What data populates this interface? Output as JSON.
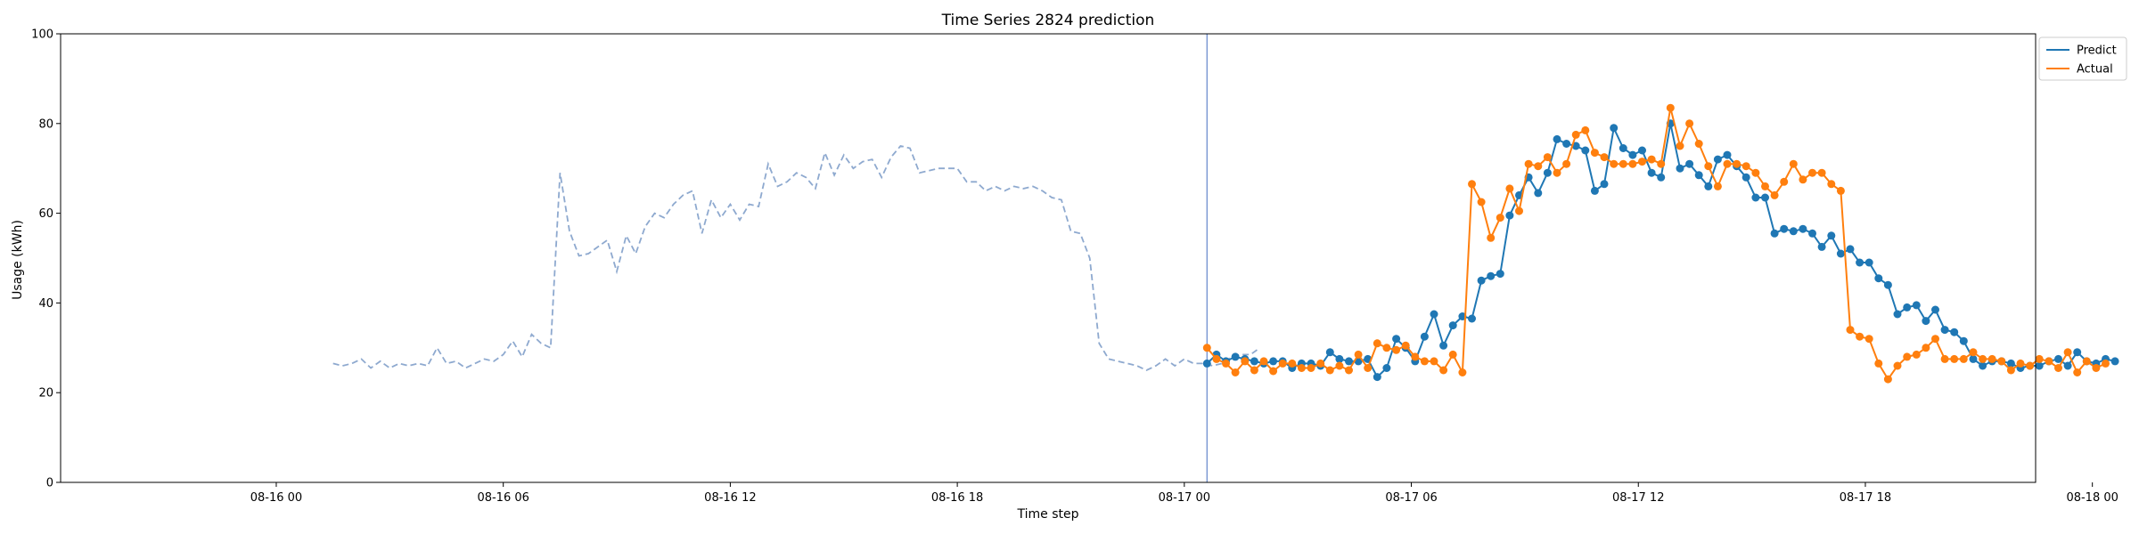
{
  "chart_data": {
    "type": "line",
    "title": "Time Series 2824 prediction",
    "xlabel": "Time step",
    "ylabel": "Usage (kWh)",
    "ylim": [
      0,
      100
    ],
    "yticks": [
      0,
      20,
      40,
      60,
      80,
      100
    ],
    "xlim_hours": [
      -5.7,
      46.5
    ],
    "xticks": [
      {
        "label": "08-16 00",
        "hour": 0
      },
      {
        "label": "08-16 06",
        "hour": 6
      },
      {
        "label": "08-16 12",
        "hour": 12
      },
      {
        "label": "08-16 18",
        "hour": 18
      },
      {
        "label": "08-17 00",
        "hour": 24
      },
      {
        "label": "08-17 06",
        "hour": 30
      },
      {
        "label": "08-17 12",
        "hour": 36
      },
      {
        "label": "08-17 18",
        "hour": 42
      },
      {
        "label": "08-18 00",
        "hour": 48
      }
    ],
    "forecast_start_hour": 24.6,
    "history": {
      "start_hour": 1.5,
      "step_hours": 0.25,
      "color": "#8ea9cf",
      "values": [
        26.5,
        26,
        26.5,
        27.5,
        25.5,
        27,
        25.5,
        26.5,
        26,
        26.5,
        26,
        30,
        26.5,
        27,
        25.5,
        26.5,
        27.5,
        27,
        28.5,
        31.5,
        28,
        33,
        31,
        30,
        69,
        56,
        50.5,
        51,
        52.5,
        54,
        47,
        55,
        51,
        57,
        60,
        59,
        62,
        64,
        65,
        55.5,
        63,
        59,
        62,
        58.5,
        62,
        61.5,
        71,
        66,
        67,
        69,
        68,
        65.5,
        73.5,
        68.5,
        73,
        70,
        71.5,
        72,
        68,
        72.5,
        75,
        74.5,
        69,
        69.5,
        70,
        70,
        70,
        67,
        67,
        65,
        66,
        65,
        66,
        65.5,
        66,
        65,
        63.5,
        63,
        56,
        55.5,
        50,
        31,
        27.5,
        27,
        26.5,
        26,
        25,
        26,
        27.5,
        26,
        27.5,
        26.5,
        26.5,
        26,
        26.5,
        28,
        28.5,
        28.5,
        30
      ]
    },
    "series": [
      {
        "name": "Predict",
        "color": "#1f77b4",
        "start_hour": 24.6,
        "step_hours": 0.25,
        "values": [
          26.5,
          28.5,
          27,
          28,
          27.5,
          27,
          26.5,
          27,
          27,
          25.5,
          26.5,
          26.5,
          26,
          29,
          27.5,
          27,
          27,
          27.5,
          23.5,
          25.5,
          32,
          30,
          27,
          32.5,
          37.5,
          30.5,
          35,
          37,
          36.5,
          45,
          46,
          46.5,
          59.5,
          64,
          68,
          64.5,
          69,
          76.5,
          75.5,
          75,
          74,
          65,
          66.5,
          79,
          74.5,
          73,
          74,
          69,
          68,
          80,
          70,
          71,
          68.5,
          66,
          72,
          73,
          70.5,
          68,
          63.5,
          63.5,
          55.5,
          56.5,
          56,
          56.5,
          55.5,
          52.5,
          55,
          51,
          52,
          49,
          49,
          45.5,
          44,
          37.5,
          39,
          39.5,
          36,
          38.5,
          34,
          33.5,
          31.5,
          27.5,
          26,
          27,
          27,
          26.5,
          25.5,
          26,
          26,
          27,
          27.5,
          26,
          29,
          27,
          26.5,
          27.5,
          27
        ]
      },
      {
        "name": "Actual",
        "color": "#ff7f0e",
        "start_hour": 24.6,
        "step_hours": 0.25,
        "values": [
          30,
          27.5,
          26.5,
          24.5,
          27,
          25,
          27,
          24.8,
          26.5,
          26.5,
          25.5,
          25.5,
          26.5,
          25,
          26,
          25,
          28.5,
          25.5,
          31,
          30,
          29.5,
          30.5,
          28,
          27,
          27,
          25,
          28.5,
          24.5,
          66.5,
          62.5,
          54.5,
          59,
          65.5,
          60.5,
          71,
          70.5,
          72.5,
          69,
          71,
          77.5,
          78.5,
          73.5,
          72.5,
          71,
          71,
          71,
          71.5,
          72,
          71,
          83.5,
          75,
          80,
          75.5,
          70.5,
          66,
          71,
          71,
          70.5,
          69,
          66,
          64,
          67,
          71,
          67.5,
          69,
          69,
          66.5,
          65,
          34,
          32.5,
          32,
          26.5,
          23,
          26,
          28,
          28.5,
          30,
          32,
          27.5,
          27.5,
          27.5,
          29,
          27.5,
          27.5,
          27,
          25,
          26.5,
          26,
          27.5,
          27,
          25.5,
          29,
          24.5,
          27,
          25.5,
          26.5
        ]
      }
    ],
    "legend": {
      "placement": "outside-top-right",
      "entries": [
        "Predict",
        "Actual"
      ]
    },
    "grid": false
  }
}
